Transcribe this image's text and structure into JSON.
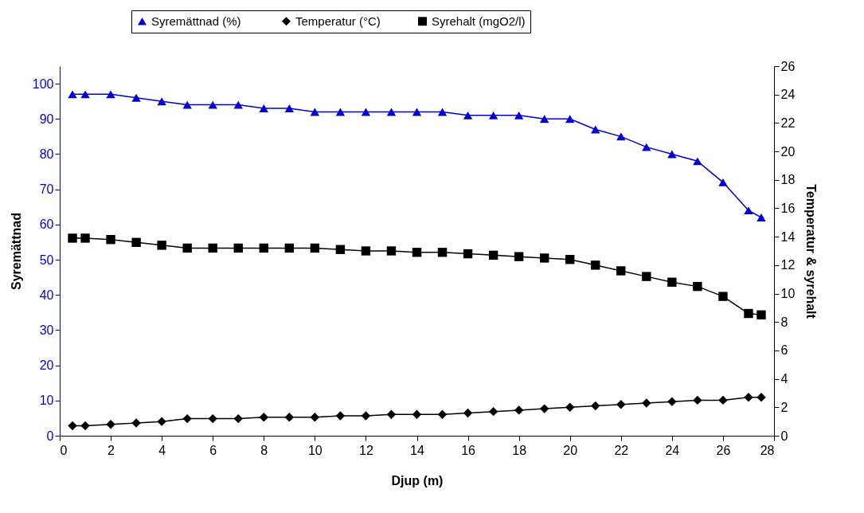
{
  "chart_data": {
    "type": "line",
    "xlabel": "Djup (m)",
    "ylabel": "Syremättnad",
    "y2label": "Temperatur & syrehalt",
    "x": [
      0.5,
      1,
      2,
      3,
      4,
      5,
      6,
      7,
      8,
      9,
      10,
      11,
      12,
      13,
      14,
      15,
      16,
      17,
      18,
      19,
      20,
      21,
      22,
      23,
      24,
      25,
      26,
      27,
      27.5
    ],
    "xlim": [
      0,
      28
    ],
    "xticks": [
      0,
      2,
      4,
      6,
      8,
      10,
      12,
      14,
      16,
      18,
      20,
      22,
      24,
      26,
      28
    ],
    "ylim": [
      0,
      105
    ],
    "yticks": [
      0,
      10,
      20,
      30,
      40,
      50,
      60,
      70,
      80,
      90,
      100
    ],
    "y2lim": [
      0,
      26
    ],
    "y2ticks": [
      0,
      2,
      4,
      6,
      8,
      10,
      12,
      14,
      16,
      18,
      20,
      22,
      24,
      26
    ],
    "legend": "top",
    "grid": false,
    "series": [
      {
        "name": "Syremättnad  (%)",
        "color": "#0000cc",
        "marker": "triangle",
        "values": [
          97,
          97,
          97,
          96,
          95,
          94,
          94,
          94,
          93,
          93,
          92,
          92,
          92,
          92,
          92,
          92,
          91,
          91,
          91,
          90,
          90,
          87,
          85,
          82,
          80,
          78,
          72,
          64,
          62
        ]
      },
      {
        "name": "Temperatur (°C)",
        "color": "#000000",
        "marker": "diamond",
        "axis": "y2",
        "values": [
          0.7,
          0.7,
          0.8,
          0.9,
          1.0,
          1.2,
          1.2,
          1.2,
          1.3,
          1.3,
          1.3,
          1.4,
          1.4,
          1.5,
          1.5,
          1.5,
          1.6,
          1.7,
          1.8,
          1.9,
          2.0,
          2.1,
          2.2,
          2.3,
          2.4,
          2.5,
          2.5,
          2.7,
          2.7
        ]
      },
      {
        "name": "Syrehalt (mgO2/l)",
        "color": "#000000",
        "marker": "square",
        "axis": "y2",
        "values": [
          13.9,
          13.9,
          13.8,
          13.6,
          13.4,
          13.2,
          13.2,
          13.2,
          13.2,
          13.2,
          13.2,
          13.1,
          13.0,
          13.0,
          12.9,
          12.9,
          12.8,
          12.7,
          12.6,
          12.5,
          12.4,
          12.0,
          11.6,
          11.2,
          10.8,
          10.5,
          9.8,
          8.6,
          8.5
        ]
      }
    ]
  }
}
